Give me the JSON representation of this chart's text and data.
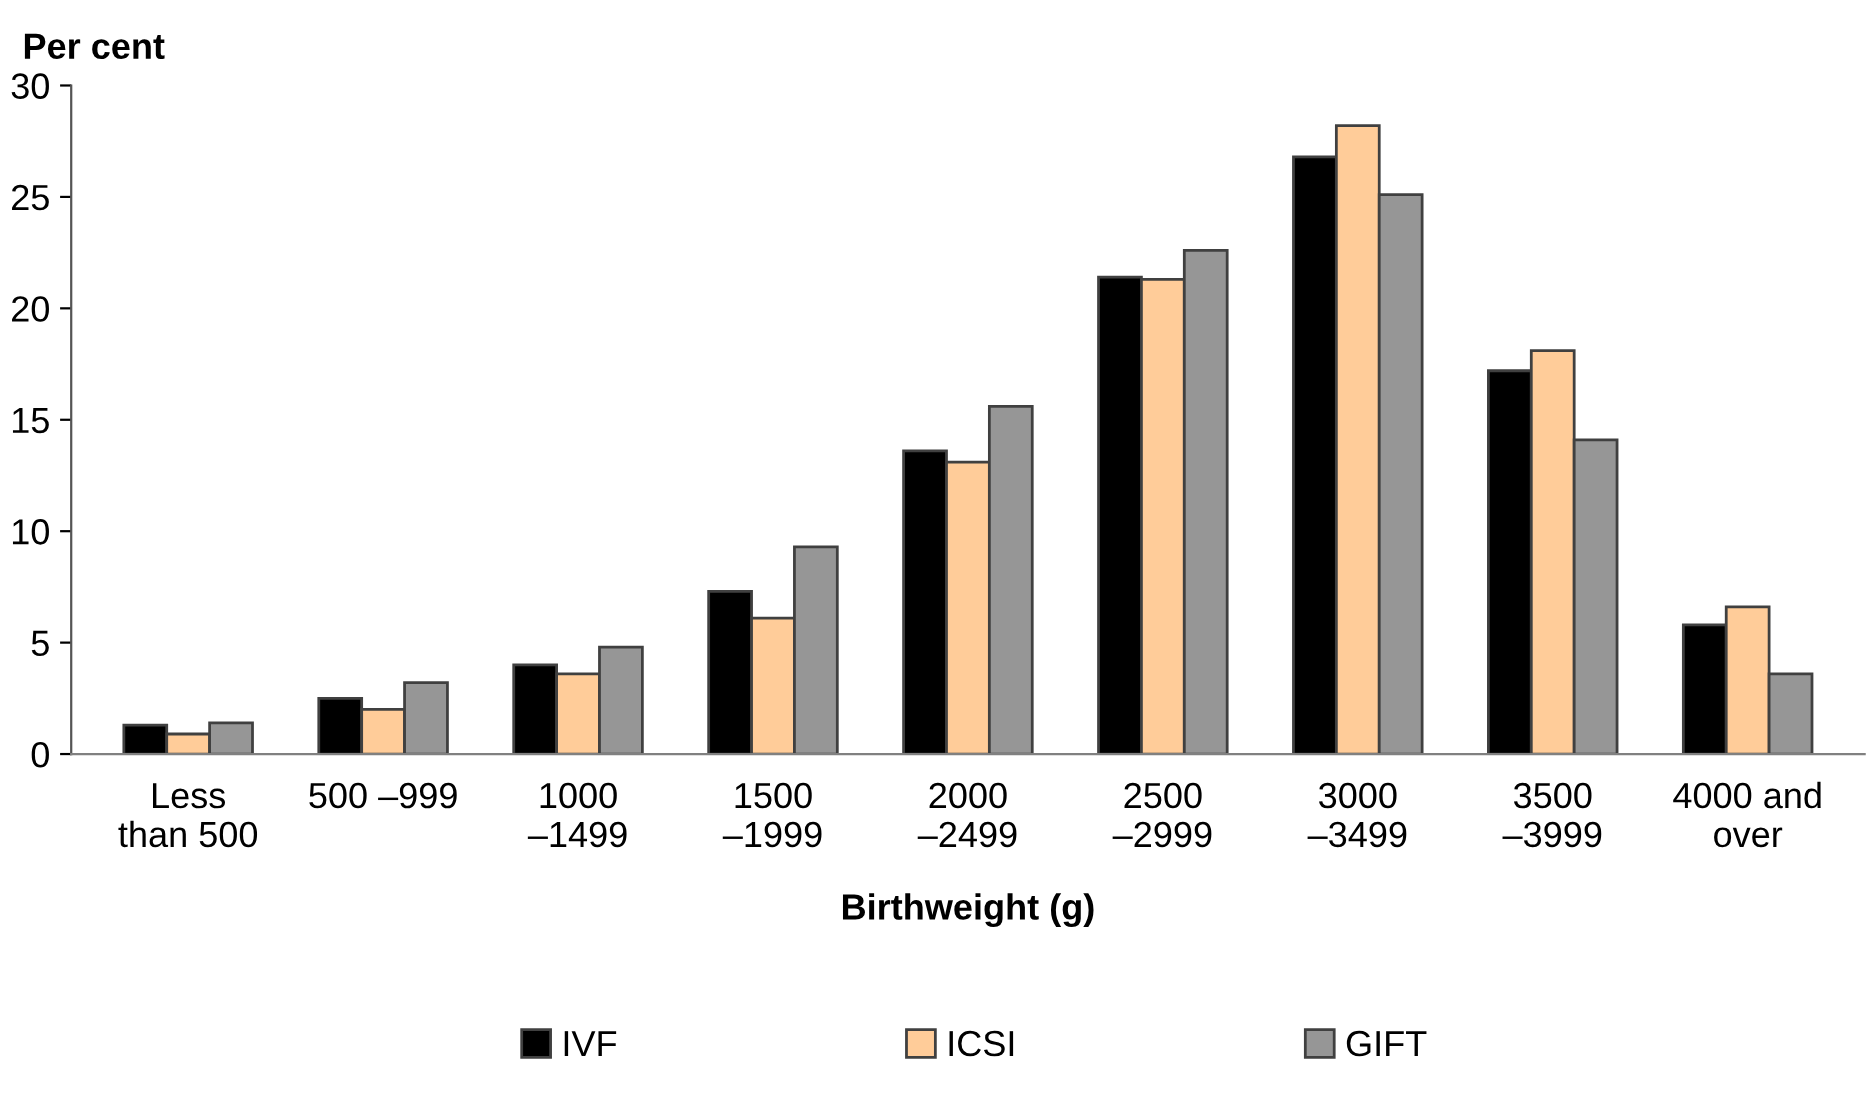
{
  "chart_data": {
    "type": "bar",
    "ylabel": "Per cent",
    "xlabel": "Birthweight (g)",
    "categories": [
      "Less\nthan 500",
      "500 –999",
      "1000\n–1499",
      "1500\n–1999",
      "2000\n–2499",
      "2500\n–2999",
      "3000\n–3499",
      "3500\n–3999",
      "4000 and\nover"
    ],
    "series": [
      {
        "name": "IVF",
        "color": "#000000",
        "values": [
          1.3,
          2.5,
          4.0,
          7.3,
          13.6,
          21.4,
          26.8,
          17.2,
          5.8
        ]
      },
      {
        "name": "ICSI",
        "color": "#ffcc99",
        "values": [
          0.9,
          2.0,
          3.6,
          6.1,
          13.1,
          21.3,
          28.2,
          18.1,
          6.6
        ]
      },
      {
        "name": "GIFT",
        "color": "#969696",
        "values": [
          1.4,
          3.2,
          4.8,
          9.3,
          15.6,
          22.6,
          25.1,
          14.1,
          3.6
        ]
      }
    ],
    "ylim": [
      0,
      30
    ],
    "yticks": [
      0,
      5,
      10,
      15,
      20,
      25,
      30
    ],
    "grid": false,
    "legend": "bottom"
  }
}
